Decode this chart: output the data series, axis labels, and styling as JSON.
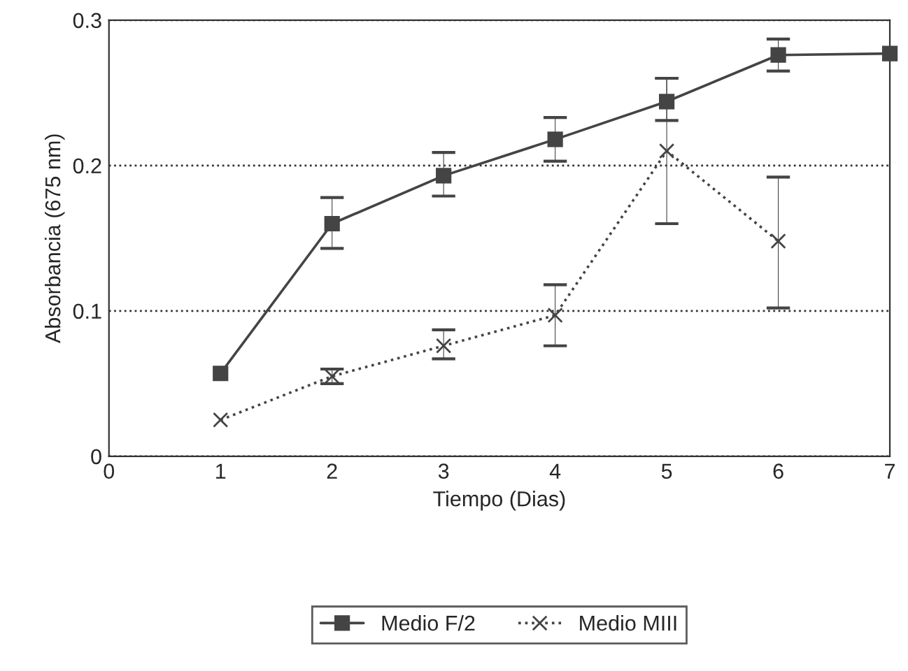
{
  "chart_data": {
    "type": "line",
    "xlabel": "Tiempo (Dias)",
    "ylabel": "Absorbancia (675 nm)",
    "xlim": [
      0,
      7
    ],
    "ylim": [
      0,
      0.3
    ],
    "xticks": [
      0,
      1,
      2,
      3,
      4,
      5,
      6,
      7
    ],
    "yticks": [
      0,
      0.1,
      0.2,
      0.3
    ],
    "grid": "y",
    "legend": "bottom",
    "series": [
      {
        "name": "Medio F/2",
        "color": "#444444",
        "marker": "square",
        "line_style": "solid",
        "x": [
          1,
          2,
          3,
          4,
          5,
          6,
          7
        ],
        "values": [
          0.057,
          0.16,
          0.193,
          0.218,
          0.244,
          0.276,
          0.277
        ],
        "errors": [
          null,
          [
            0.143,
            0.178
          ],
          [
            0.179,
            0.209
          ],
          [
            0.203,
            0.233
          ],
          [
            0.231,
            0.26
          ],
          [
            0.265,
            0.287
          ],
          null
        ]
      },
      {
        "name": "Medio MIII",
        "color": "#444444",
        "marker": "cross",
        "line_style": "dotted",
        "x": [
          1,
          2,
          3,
          4,
          5,
          6
        ],
        "values": [
          0.025,
          0.055,
          0.076,
          0.097,
          0.21,
          0.148
        ],
        "errors": [
          null,
          [
            0.05,
            0.06
          ],
          [
            0.067,
            0.087
          ],
          [
            0.076,
            0.118
          ],
          [
            0.16,
            0.26
          ],
          [
            0.102,
            0.192
          ]
        ]
      }
    ]
  }
}
